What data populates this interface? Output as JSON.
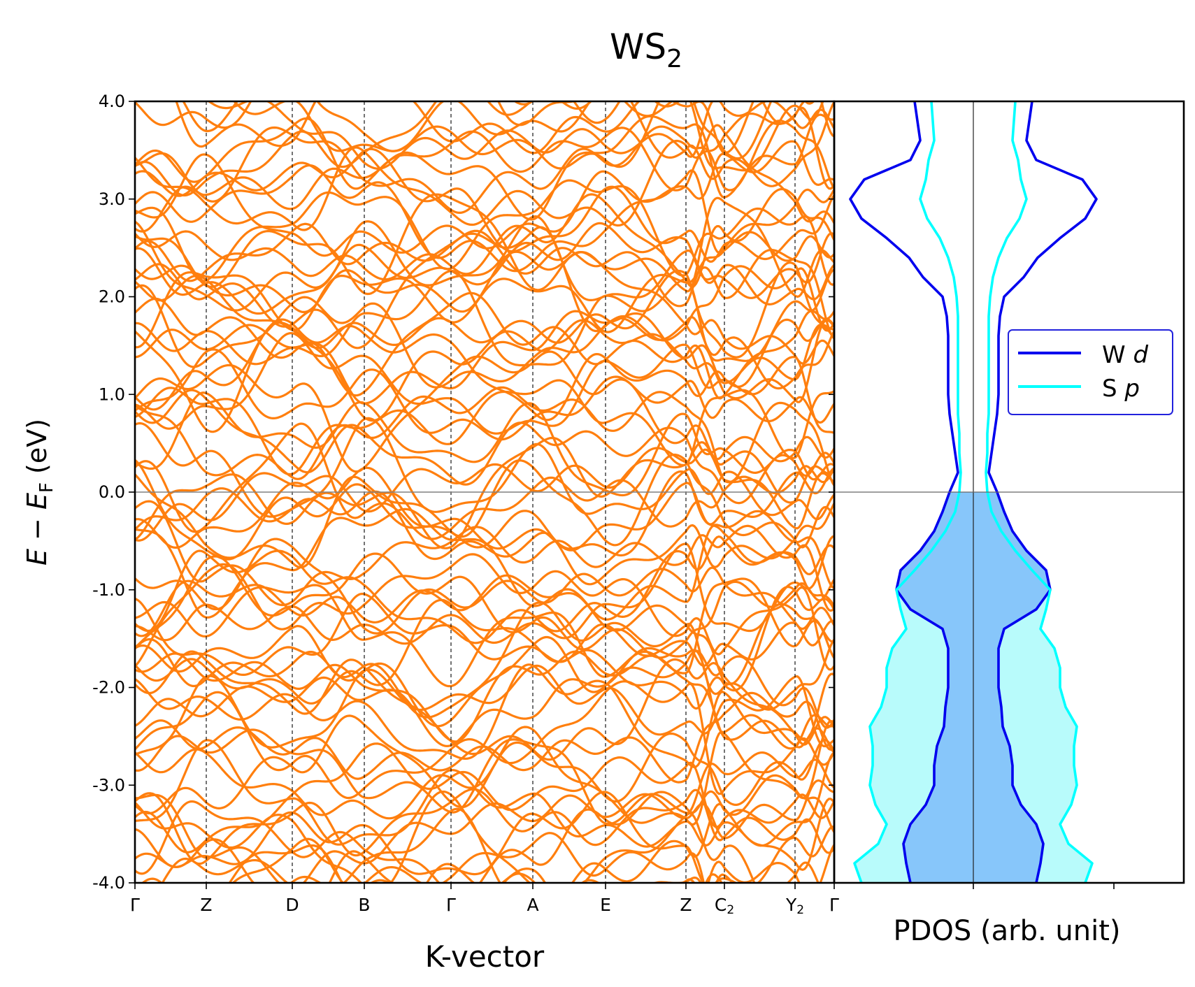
{
  "chart_data": [
    {
      "type": "line",
      "title": {
        "main": "WS",
        "sub": "2"
      },
      "xlabel": "K-vector",
      "ylabel": {
        "e1": "E",
        "minus": " − ",
        "e2": "E",
        "sub": "F",
        "unit": " (eV)"
      },
      "ylim": [
        -4.0,
        4.0
      ],
      "yticks": [
        -4.0,
        -3.0,
        -2.0,
        -1.0,
        0.0,
        1.0,
        2.0,
        3.0,
        4.0
      ],
      "ytick_labels": [
        "-4.0",
        "-3.0",
        "-2.0",
        "-1.0",
        "0.0",
        "1.0",
        "2.0",
        "3.0",
        "4.0"
      ],
      "kpoints": [
        {
          "label": "Γ",
          "sub": "",
          "x": 0.0
        },
        {
          "label": "Z",
          "sub": "",
          "x": 0.102
        },
        {
          "label": "D",
          "sub": "",
          "x": 0.225
        },
        {
          "label": "B",
          "sub": "",
          "x": 0.328
        },
        {
          "label": "Γ",
          "sub": "",
          "x": 0.452
        },
        {
          "label": "A",
          "sub": "",
          "x": 0.569
        },
        {
          "label": "E",
          "sub": "",
          "x": 0.673
        },
        {
          "label": "Z",
          "sub": "",
          "x": 0.788
        },
        {
          "label": "C",
          "sub": "2",
          "x": 0.843
        },
        {
          "label": "Y",
          "sub": "2",
          "x": 0.944
        },
        {
          "label": "Γ",
          "sub": "",
          "x": 1.0
        }
      ],
      "grid": false,
      "fermi_level": 0.0,
      "colors": {
        "bands": "#ff7f0e",
        "fermi_line": "#808080",
        "kpath_lines": "#000000"
      },
      "series": []
    },
    {
      "type": "area",
      "xlabel": "PDOS (arb. unit)",
      "ylim": [
        -4.0,
        4.0
      ],
      "mirrored": true,
      "legend": {
        "placement": "center-right"
      },
      "energy": [
        4.0,
        3.8,
        3.6,
        3.4,
        3.2,
        3.0,
        2.8,
        2.6,
        2.4,
        2.2,
        2.0,
        1.8,
        1.6,
        1.4,
        1.2,
        1.0,
        0.8,
        0.6,
        0.4,
        0.2,
        0.0,
        -0.2,
        -0.4,
        -0.6,
        -0.8,
        -1.0,
        -1.2,
        -1.4,
        -1.6,
        -1.8,
        -2.0,
        -2.2,
        -2.4,
        -2.6,
        -2.8,
        -3.0,
        -3.2,
        -3.4,
        -3.6,
        -3.8,
        -4.0
      ],
      "series": [
        {
          "name": "W",
          "name_italic": "d",
          "color": "#0000ee",
          "fill": "#87c6fa",
          "values": [
            0.42,
            0.4,
            0.38,
            0.45,
            0.78,
            0.88,
            0.8,
            0.62,
            0.46,
            0.36,
            0.22,
            0.19,
            0.18,
            0.18,
            0.18,
            0.18,
            0.17,
            0.15,
            0.13,
            0.11,
            0.17,
            0.22,
            0.28,
            0.38,
            0.52,
            0.55,
            0.45,
            0.22,
            0.18,
            0.18,
            0.18,
            0.2,
            0.21,
            0.26,
            0.28,
            0.28,
            0.34,
            0.45,
            0.5,
            0.48,
            0.45
          ]
        },
        {
          "name": "S",
          "name_italic": "p",
          "color": "#00ffff",
          "fill": "#b8fbfb",
          "values": [
            0.3,
            0.29,
            0.28,
            0.32,
            0.34,
            0.38,
            0.33,
            0.24,
            0.18,
            0.14,
            0.12,
            0.11,
            0.11,
            0.11,
            0.11,
            0.11,
            0.11,
            0.1,
            0.1,
            0.09,
            0.1,
            0.13,
            0.2,
            0.3,
            0.42,
            0.55,
            0.52,
            0.48,
            0.58,
            0.62,
            0.62,
            0.66,
            0.74,
            0.72,
            0.72,
            0.74,
            0.7,
            0.62,
            0.68,
            0.85,
            0.8
          ]
        }
      ]
    }
  ]
}
